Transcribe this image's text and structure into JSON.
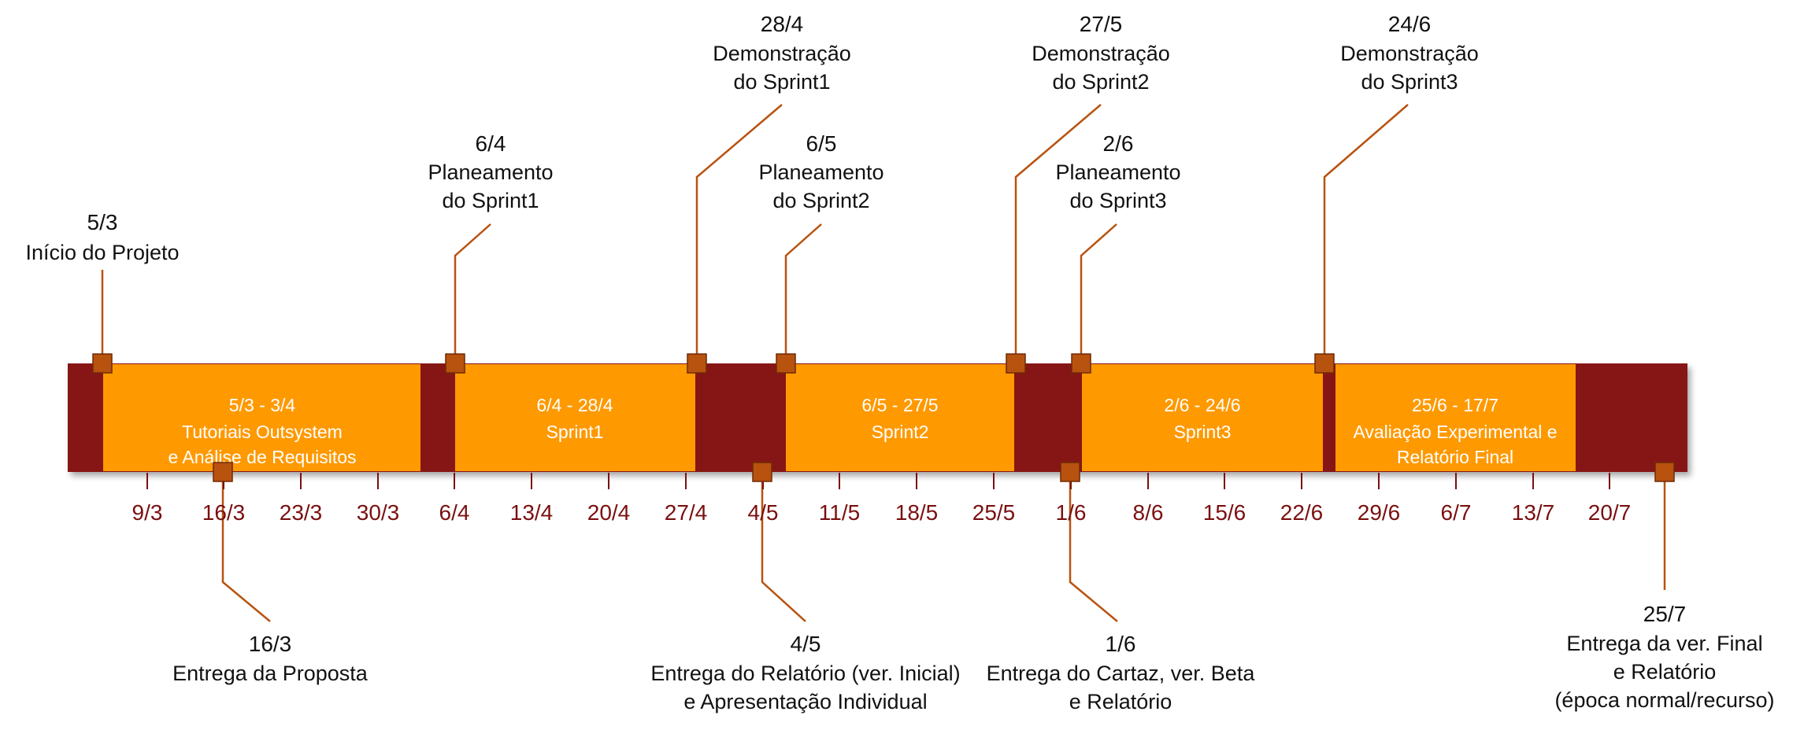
{
  "colors": {
    "bar": "#861313",
    "phase": "#ff9900",
    "marker": "#b8520f",
    "leader": "#b8520f",
    "tick": "#7a1010",
    "text": "#111111"
  },
  "timeline": {
    "phases": [
      {
        "id": "phase-tutorials",
        "dates": "5/3 - 3/4",
        "lines": [
          "Tutoriais Outsystem",
          "e Análise de Requisitos"
        ]
      },
      {
        "id": "phase-sprint1",
        "dates": "6/4 - 28/4",
        "lines": [
          "Sprint1"
        ]
      },
      {
        "id": "phase-sprint2",
        "dates": "6/5 - 27/5",
        "lines": [
          "Sprint2"
        ]
      },
      {
        "id": "phase-sprint3",
        "dates": "2/6 - 24/6",
        "lines": [
          "Sprint3"
        ]
      },
      {
        "id": "phase-final",
        "dates": "25/6 - 17/7",
        "lines": [
          "Avaliação Experimental e",
          "Relatório Final"
        ]
      }
    ],
    "ticks": [
      "9/3",
      "16/3",
      "23/3",
      "30/3",
      "6/4",
      "13/4",
      "20/4",
      "27/4",
      "4/5",
      "11/5",
      "18/5",
      "25/5",
      "1/6",
      "8/6",
      "15/6",
      "22/6",
      "29/6",
      "6/7",
      "13/7",
      "20/7"
    ],
    "milestones_above": [
      {
        "id": "ms-inicio",
        "date": "5/3",
        "lines": [
          "Início do Projeto"
        ]
      },
      {
        "id": "ms-plan-sprint1",
        "date": "6/4",
        "lines": [
          "Planeamento",
          "do Sprint1"
        ]
      },
      {
        "id": "ms-demo-sprint1",
        "date": "28/4",
        "lines": [
          "Demonstração",
          "do Sprint1"
        ]
      },
      {
        "id": "ms-plan-sprint2",
        "date": "6/5",
        "lines": [
          "Planeamento",
          "do Sprint2"
        ]
      },
      {
        "id": "ms-demo-sprint2",
        "date": "27/5",
        "lines": [
          "Demonstração",
          "do Sprint2"
        ]
      },
      {
        "id": "ms-plan-sprint3",
        "date": "2/6",
        "lines": [
          "Planeamento",
          "do Sprint3"
        ]
      },
      {
        "id": "ms-demo-sprint3",
        "date": "24/6",
        "lines": [
          "Demonstração",
          "do Sprint3"
        ]
      }
    ],
    "milestones_below": [
      {
        "id": "ms-entrega-proposta",
        "date": "16/3",
        "lines": [
          "Entrega da Proposta"
        ]
      },
      {
        "id": "ms-entrega-relatorio-inicial",
        "date": "4/5",
        "lines": [
          "Entrega do Relatório (ver. Inicial)",
          "e Apresentação Individual"
        ]
      },
      {
        "id": "ms-entrega-cartaz",
        "date": "1/6",
        "lines": [
          "Entrega do Cartaz, ver. Beta",
          "e Relatório"
        ]
      },
      {
        "id": "ms-entrega-final",
        "date": "25/7",
        "lines": [
          "Entrega da ver. Final",
          "e Relatório",
          "(época normal/recurso)"
        ]
      }
    ]
  }
}
